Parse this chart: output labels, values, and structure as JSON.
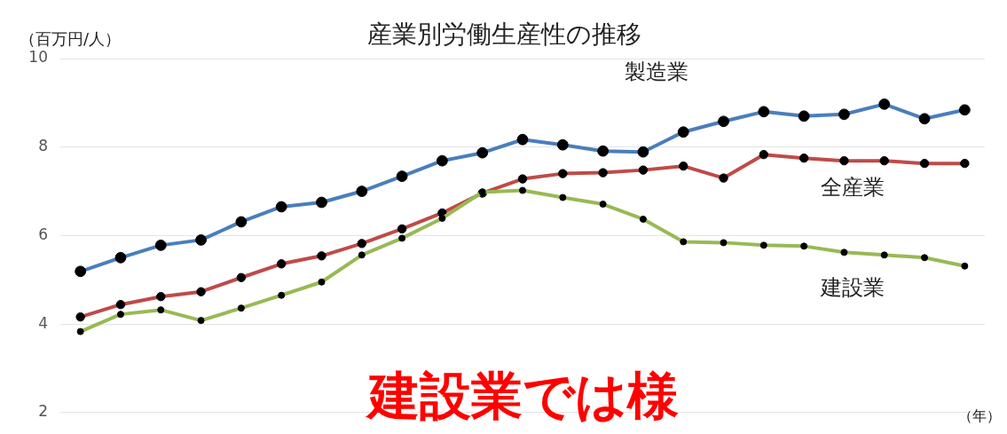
{
  "chart_data": {
    "type": "line",
    "title": "産業別労働生産性の推移",
    "ylabel": "（百万円/人）",
    "xlabel": "（年）",
    "annotations": [
      "建設業では様"
    ],
    "categories": [
      null,
      null,
      null,
      null,
      null,
      null,
      null,
      null,
      null,
      null,
      null,
      null,
      null,
      null,
      null,
      null,
      null,
      null,
      null,
      null,
      null,
      null,
      null
    ],
    "series": [
      {
        "name": "製造業",
        "color": "#4a7ebb",
        "values": [
          5.19,
          5.5,
          5.78,
          5.9,
          6.31,
          6.65,
          6.75,
          7.0,
          7.34,
          7.69,
          7.87,
          8.17,
          8.05,
          7.91,
          7.89,
          8.34,
          8.58,
          8.8,
          8.7,
          8.74,
          8.97,
          8.64,
          8.84
        ]
      },
      {
        "name": "全産業",
        "color": "#be4b48",
        "values": [
          4.16,
          4.44,
          4.62,
          4.73,
          5.05,
          5.36,
          5.54,
          5.82,
          6.15,
          6.51,
          6.96,
          7.28,
          7.4,
          7.42,
          7.48,
          7.57,
          7.3,
          7.83,
          7.75,
          7.69,
          7.69,
          7.63,
          7.63
        ]
      },
      {
        "name": "建設業",
        "color": "#98b954",
        "values": [
          3.83,
          4.22,
          4.32,
          4.08,
          4.36,
          4.65,
          4.95,
          5.56,
          5.94,
          6.39,
          6.98,
          7.02,
          6.86,
          6.71,
          6.37,
          5.86,
          5.84,
          5.78,
          5.76,
          5.62,
          5.56,
          5.5,
          5.31
        ]
      }
    ],
    "ylim": [
      2,
      10
    ],
    "yticks": [
      2,
      4,
      6,
      8,
      10
    ],
    "grid": "y",
    "legend": false,
    "marker": "circle",
    "line_style": "solid"
  }
}
